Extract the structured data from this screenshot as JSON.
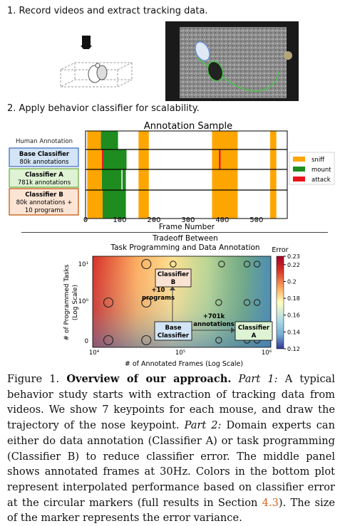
{
  "step1": {
    "label": "1. Record videos and extract tracking data."
  },
  "step2": {
    "label": "2. Apply behavior classifier for scalability."
  },
  "annotation_sample": {
    "title": "Annotation Sample",
    "human_label": "Human Annotation",
    "rows": [
      {
        "name": "Base Classifier",
        "detail": "80k annotations"
      },
      {
        "name": "Classifier A",
        "detail": "781k annotations"
      },
      {
        "name": "Classifier B",
        "detail": "80k annotations +",
        "detail2": "10 programs"
      }
    ],
    "xlabel": "Frame Number",
    "ticks": [
      "0",
      "100",
      "200",
      "300",
      "400",
      "500"
    ],
    "legend": [
      {
        "label": "sniff",
        "color": "#ffa500"
      },
      {
        "label": "mount",
        "color": "#1e8c1e"
      },
      {
        "label": "attack",
        "color": "#e8141c"
      }
    ]
  },
  "chart_data": [
    {
      "type": "bar",
      "title": "Annotation Sample",
      "xlabel": "Frame Number",
      "xlim": [
        0,
        590
      ],
      "categories": [
        "Human Annotation",
        "Base Classifier",
        "Classifier A",
        "Classifier B"
      ],
      "segments": [
        {
          "row": 0,
          "start": 5,
          "end": 45,
          "class": "sniff"
        },
        {
          "row": 0,
          "start": 45,
          "end": 95,
          "class": "mount"
        },
        {
          "row": 0,
          "start": 155,
          "end": 185,
          "class": "sniff"
        },
        {
          "row": 0,
          "start": 370,
          "end": 445,
          "class": "sniff"
        },
        {
          "row": 0,
          "start": 540,
          "end": 558,
          "class": "sniff"
        },
        {
          "row": 1,
          "start": 5,
          "end": 48,
          "class": "sniff"
        },
        {
          "row": 1,
          "start": 48,
          "end": 52,
          "class": "attack"
        },
        {
          "row": 1,
          "start": 52,
          "end": 120,
          "class": "mount"
        },
        {
          "row": 1,
          "start": 155,
          "end": 185,
          "class": "sniff"
        },
        {
          "row": 1,
          "start": 370,
          "end": 390,
          "class": "sniff"
        },
        {
          "row": 1,
          "start": 390,
          "end": 395,
          "class": "attack"
        },
        {
          "row": 1,
          "start": 395,
          "end": 445,
          "class": "sniff"
        },
        {
          "row": 1,
          "start": 540,
          "end": 558,
          "class": "sniff"
        },
        {
          "row": 2,
          "start": 5,
          "end": 48,
          "class": "sniff"
        },
        {
          "row": 2,
          "start": 48,
          "end": 105,
          "class": "mount"
        },
        {
          "row": 2,
          "start": 108,
          "end": 118,
          "class": "mount"
        },
        {
          "row": 2,
          "start": 155,
          "end": 185,
          "class": "sniff"
        },
        {
          "row": 2,
          "start": 370,
          "end": 445,
          "class": "sniff"
        },
        {
          "row": 2,
          "start": 540,
          "end": 558,
          "class": "sniff"
        },
        {
          "row": 3,
          "start": 5,
          "end": 50,
          "class": "sniff"
        },
        {
          "row": 3,
          "start": 50,
          "end": 118,
          "class": "mount"
        },
        {
          "row": 3,
          "start": 155,
          "end": 185,
          "class": "sniff"
        },
        {
          "row": 3,
          "start": 370,
          "end": 445,
          "class": "sniff"
        },
        {
          "row": 3,
          "start": 540,
          "end": 558,
          "class": "sniff"
        }
      ]
    },
    {
      "type": "heatmap",
      "title": "Tradeoff Between",
      "subtitle": "Task Programming and Data Annotation",
      "xlabel": "# of Annotated Frames (Log Scale)",
      "ylabel": "# of Programmed Tasks",
      "ylabel2": "(Log Scale)",
      "xscale": "log",
      "xlim": [
        10000,
        1000000
      ],
      "ylim": [
        0,
        10
      ],
      "xticks": [
        "10⁴",
        "10⁵",
        "10⁶"
      ],
      "yticks": [
        "0",
        "10⁰",
        "10¹"
      ],
      "colorbar": {
        "label": "Error",
        "min": 0.12,
        "max": 0.23,
        "ticks": [
          "0.23",
          "0.22",
          "0.2",
          "0.18",
          "0.16",
          "0.14",
          "0.12"
        ]
      },
      "markers": [
        {
          "x": 15000,
          "y": 0,
          "size": "large"
        },
        {
          "x": 15000,
          "y": 1,
          "size": "large"
        },
        {
          "x": 40000,
          "y": 10,
          "size": "large"
        },
        {
          "x": 80000,
          "y": 10,
          "size": "small"
        },
        {
          "x": 280000,
          "y": 10,
          "size": "small"
        },
        {
          "x": 540000,
          "y": 10,
          "size": "small"
        },
        {
          "x": 700000,
          "y": 10,
          "size": "small"
        },
        {
          "x": 40000,
          "y": 1,
          "size": "large"
        },
        {
          "x": 260000,
          "y": 1,
          "size": "small"
        },
        {
          "x": 540000,
          "y": 1,
          "size": "small"
        },
        {
          "x": 700000,
          "y": 1,
          "size": "small"
        },
        {
          "x": 40000,
          "y": 0,
          "size": "large"
        },
        {
          "x": 260000,
          "y": 0,
          "size": "small"
        },
        {
          "x": 540000,
          "y": 0,
          "size": "small"
        },
        {
          "x": 700000,
          "y": 0,
          "size": "small"
        }
      ],
      "annotations": [
        {
          "box": "Classifier",
          "box2": "B"
        },
        {
          "text": "+10",
          "text2": "programs"
        },
        {
          "text": "+701k",
          "text2": "annotations"
        },
        {
          "box": "Base",
          "box2": "Classifier"
        },
        {
          "box": "Classifier",
          "box2": "A"
        }
      ]
    }
  ],
  "caption": {
    "fig": "Figure 1.",
    "bold": "Overview of our approach.",
    "part1": "Part 1:",
    "t1": "A typical behavior study starts with extraction of tracking data from videos. We show 7 keypoints for each mouse, and draw the trajectory of the nose keypoint.",
    "part2": "Part 2:",
    "t2": "Domain experts can either do data annotation (Classifier A) or task programming (Classifier B) to reduce classifier error. The middle panel shows annotated frames at 30Hz. Colors in the bottom plot represent interpolated performance based on classifier error at the circular markers (full results in Section",
    "ref": "4.3",
    "t3": "). The size of the marker represents the error variance."
  }
}
